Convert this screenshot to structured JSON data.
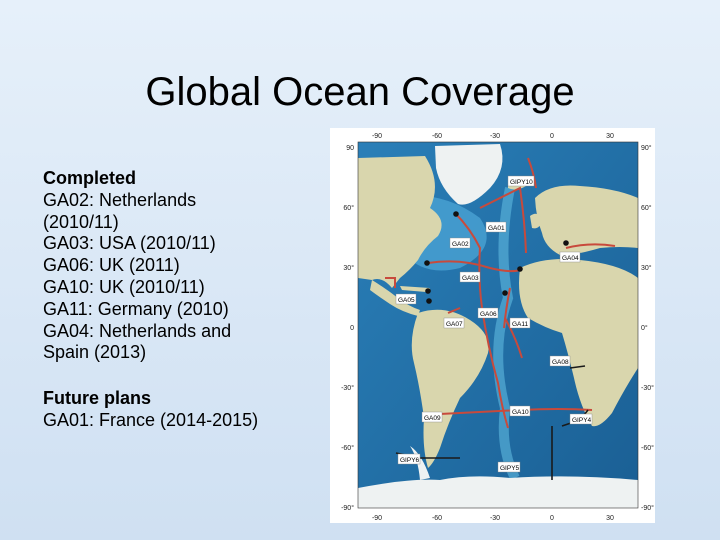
{
  "title": "Global Ocean Coverage",
  "completed": {
    "heading": "Completed",
    "lines": [
      "GA02: Netherlands",
      "(2010/11)",
      "GA03: USA (2010/11)",
      "GA06: UK (2011)",
      "GA10: UK (2010/11)",
      "GA11: Germany (2010)",
      "GA04: Netherlands and",
      "Spain (2013)"
    ]
  },
  "future": {
    "heading": "Future plans",
    "lines": [
      "GA01: France (2014-2015)"
    ]
  },
  "map": {
    "axis_top": [
      "-90",
      "-60",
      "-30",
      "0",
      "30"
    ],
    "axis_bottom": [
      "-90",
      "-60",
      "-30",
      "0",
      "30"
    ],
    "axis_left": [
      "90",
      "60°",
      "30°",
      "0",
      "-30°",
      "-60°",
      "-90°"
    ],
    "axis_right": [
      "90°",
      "60°",
      "30°",
      "0°",
      "-30°",
      "-60°",
      "-90°"
    ],
    "section_labels": [
      "GIPY10",
      "GA01",
      "GA02",
      "GA04",
      "GA03",
      "GA05",
      "GA06",
      "GA07",
      "GA11",
      "GA08",
      "GA09",
      "GA10",
      "GIPY4",
      "GIPY6",
      "GIPY5"
    ],
    "colors": {
      "ocean_deep": "#1d6fa8",
      "ocean_shallow": "#5fb3d9",
      "land": "#d9d6ad",
      "ice": "#eef2f2",
      "completed_track": "#c84a3c",
      "future_track": "#1a1a1a",
      "station": "#111111"
    }
  }
}
